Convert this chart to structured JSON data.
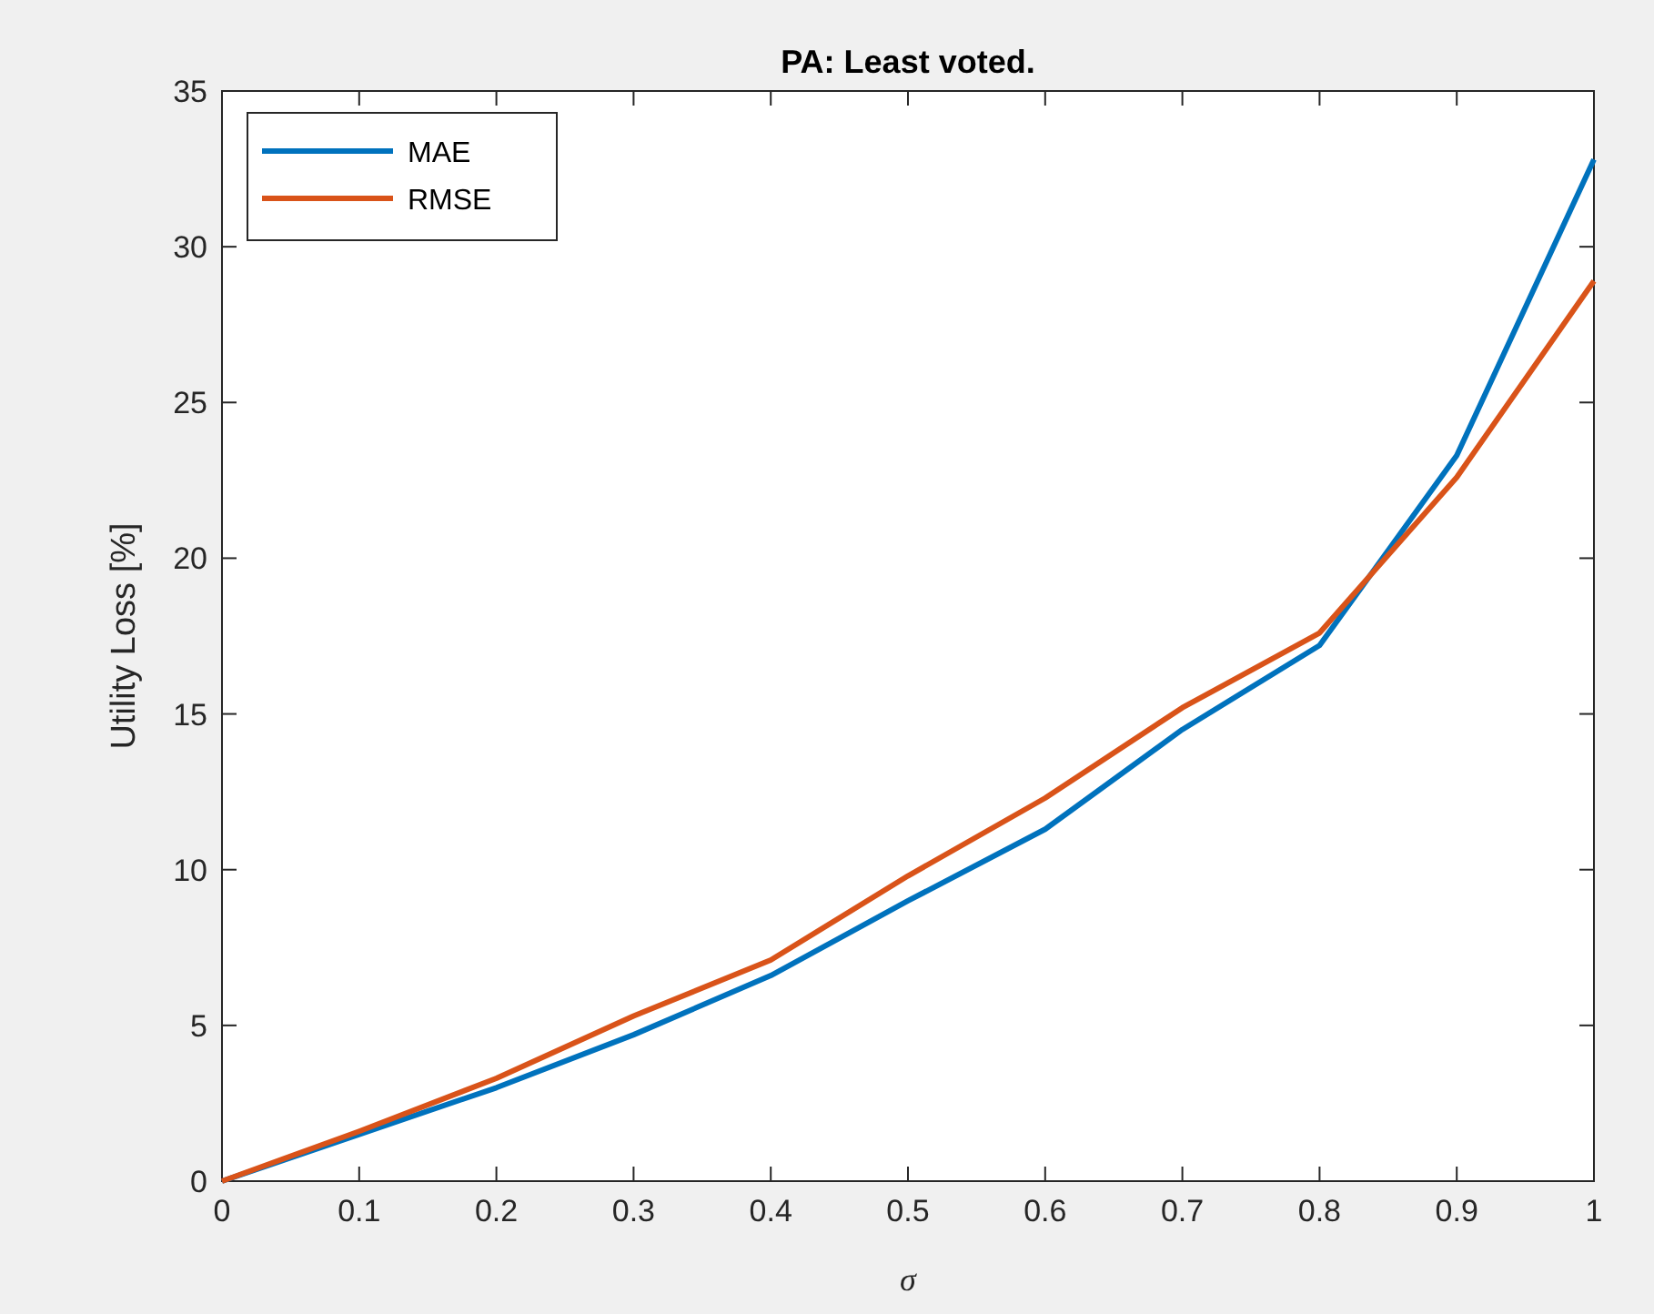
{
  "chart_data": {
    "type": "line",
    "title": "PA: Least voted.",
    "xlabel": "σ",
    "ylabel": "Utility Loss [%]",
    "x": [
      0,
      0.1,
      0.2,
      0.3,
      0.4,
      0.5,
      0.6,
      0.7,
      0.8,
      0.9,
      1
    ],
    "series": [
      {
        "name": "MAE",
        "color": "#0072bd",
        "values": [
          0,
          1.5,
          3.0,
          4.7,
          6.6,
          9.0,
          11.3,
          14.5,
          17.2,
          23.3,
          32.8
        ]
      },
      {
        "name": "RMSE",
        "color": "#d95319",
        "values": [
          0,
          1.6,
          3.3,
          5.3,
          7.1,
          9.8,
          12.3,
          15.2,
          17.6,
          22.6,
          28.9
        ]
      }
    ],
    "xlim": [
      0,
      1
    ],
    "xticks": [
      0,
      0.1,
      0.2,
      0.3,
      0.4,
      0.5,
      0.6,
      0.7,
      0.8,
      0.9,
      1
    ],
    "ylim": [
      0,
      35
    ],
    "yticks": [
      0,
      5,
      10,
      15,
      20,
      25,
      30,
      35
    ],
    "legend": "top left",
    "grid": false,
    "marker": "none",
    "line_style": "solid"
  }
}
